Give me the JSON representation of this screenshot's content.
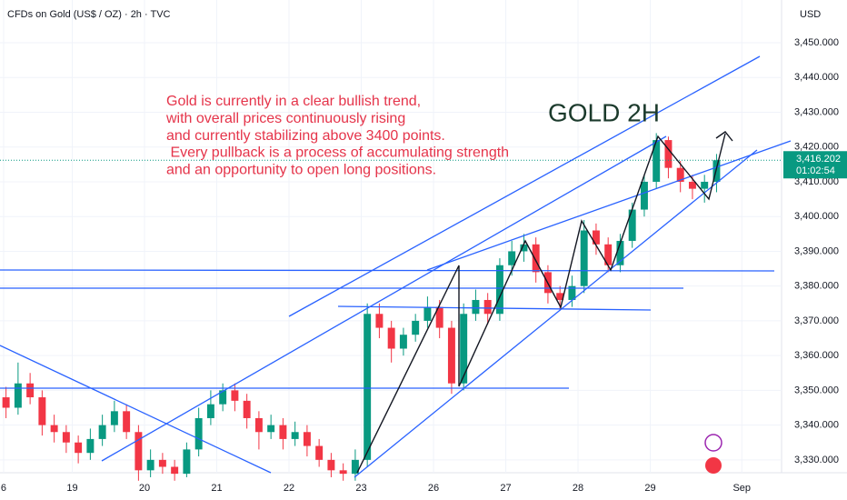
{
  "chart_data": {
    "type": "candlestick",
    "title": "CFDs on Gold (US$ / OZ) · 2h · TVC",
    "currency": "USD",
    "headline": "GOLD 2H",
    "annotation": [
      "Gold is currently in a clear bullish trend,",
      "with overall prices continuously rising",
      "and currently stabilizing above 3400 points.",
      " Every pullback is a process of accumulating strength",
      "and an opportunity to open long positions."
    ],
    "up_color": "#089981",
    "down_color": "#f23645",
    "open": [
      3348,
      3345,
      3352,
      3348,
      3340,
      3338,
      3335,
      3332,
      3336,
      3340,
      3344,
      3338,
      3327,
      3330,
      3328,
      3326,
      3333,
      3342,
      3346,
      3350,
      3347,
      3342,
      3338,
      3340,
      3336,
      3338,
      3334,
      3330,
      3327,
      3326,
      3330,
      3372,
      3368,
      3362,
      3366,
      3370,
      3374,
      3368,
      3352,
      3372,
      3376,
      3372,
      3386,
      3390,
      3392,
      3384,
      3378,
      3376,
      3380,
      3396,
      3392,
      3386,
      3393,
      3402,
      3410,
      3422,
      3414,
      3410,
      3408,
      3410
    ],
    "high": [
      3351,
      3358,
      3355,
      3350,
      3343,
      3340,
      3337,
      3339,
      3343,
      3347,
      3346,
      3340,
      3333,
      3332,
      3330,
      3335,
      3345,
      3350,
      3352,
      3352,
      3349,
      3344,
      3343,
      3342,
      3341,
      3340,
      3336,
      3332,
      3329,
      3333,
      3375,
      3375,
      3370,
      3368,
      3372,
      3377,
      3376,
      3370,
      3375,
      3379,
      3378,
      3388,
      3393,
      3395,
      3394,
      3386,
      3380,
      3383,
      3399,
      3398,
      3394,
      3395,
      3404,
      3412,
      3424,
      3423,
      3416,
      3412,
      3412,
      3418
    ],
    "low": [
      3342,
      3343,
      3346,
      3337,
      3335,
      3332,
      3329,
      3330,
      3334,
      3338,
      3336,
      3324,
      3325,
      3326,
      3324,
      3325,
      3331,
      3340,
      3344,
      3344,
      3339,
      3333,
      3336,
      3333,
      3334,
      3331,
      3328,
      3325,
      3324,
      3324,
      3328,
      3365,
      3358,
      3360,
      3364,
      3368,
      3365,
      3349,
      3350,
      3370,
      3369,
      3370,
      3383,
      3387,
      3381,
      3375,
      3373,
      3374,
      3378,
      3389,
      3384,
      3384,
      3391,
      3400,
      3408,
      3411,
      3407,
      3405,
      3404,
      3407
    ],
    "close": [
      3345,
      3352,
      3348,
      3340,
      3338,
      3335,
      3332,
      3336,
      3340,
      3344,
      3338,
      3327,
      3330,
      3328,
      3326,
      3333,
      3342,
      3346,
      3350,
      3347,
      3342,
      3338,
      3340,
      3336,
      3338,
      3334,
      3330,
      3327,
      3326,
      3330,
      3372,
      3368,
      3362,
      3366,
      3370,
      3374,
      3368,
      3352,
      3372,
      3376,
      3372,
      3386,
      3390,
      3392,
      3384,
      3378,
      3376,
      3380,
      3396,
      3392,
      3386,
      3393,
      3402,
      3410,
      3422,
      3414,
      3410,
      3408,
      3410,
      3416.202
    ],
    "last_price": {
      "value": 3416.202,
      "label": "3,416.202"
    },
    "countdown": "01:02:54",
    "xlim": [
      -0.5,
      64.4
    ],
    "xticks": [
      {
        "value": -0.2,
        "label": "6"
      },
      {
        "value": 5.5,
        "label": "19"
      },
      {
        "value": 11.5,
        "label": "20"
      },
      {
        "value": 17.5,
        "label": "21"
      },
      {
        "value": 23.5,
        "label": "22"
      },
      {
        "value": 29.5,
        "label": "23"
      },
      {
        "value": 35.5,
        "label": "26"
      },
      {
        "value": 41.5,
        "label": "27"
      },
      {
        "value": 47.5,
        "label": "28"
      },
      {
        "value": 53.5,
        "label": "29"
      },
      {
        "value": 61.1,
        "label": "Sep"
      }
    ],
    "ylim": [
      3326.3,
      3462.3
    ],
    "yticks": [
      {
        "value": 3330,
        "label": "3,330.000"
      },
      {
        "value": 3340,
        "label": "3,340.000"
      },
      {
        "value": 3350,
        "label": "3,350.000"
      },
      {
        "value": 3360,
        "label": "3,360.000"
      },
      {
        "value": 3370,
        "label": "3,370.000"
      },
      {
        "value": 3380,
        "label": "3,380.000"
      },
      {
        "value": 3390,
        "label": "3,390.000"
      },
      {
        "value": 3400,
        "label": "3,400.000"
      },
      {
        "value": 3410,
        "label": "3,410.000"
      },
      {
        "value": 3420,
        "label": "3,420.000"
      },
      {
        "value": 3430,
        "label": "3,430.000"
      },
      {
        "value": 3440,
        "label": "3,440.000"
      },
      {
        "value": 3450,
        "label": "3,450.000"
      }
    ]
  }
}
